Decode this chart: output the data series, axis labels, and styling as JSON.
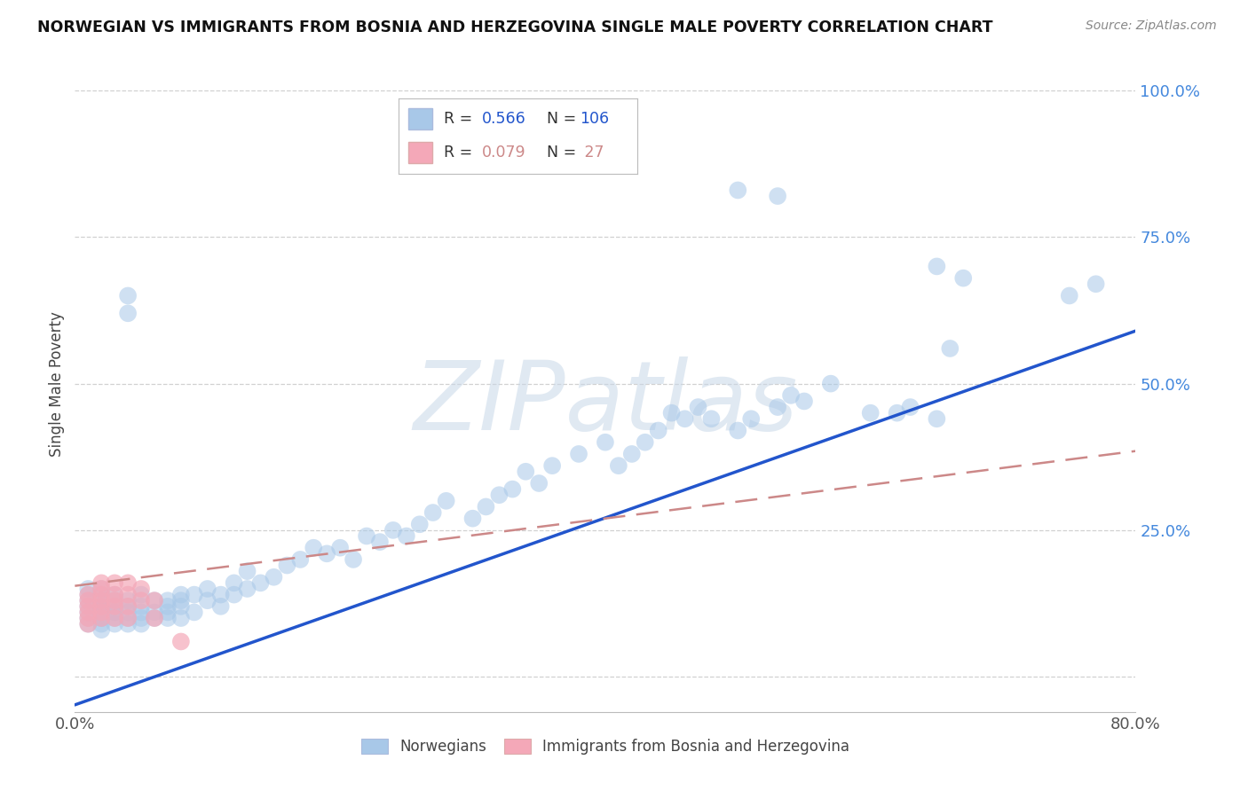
{
  "title": "NORWEGIAN VS IMMIGRANTS FROM BOSNIA AND HERZEGOVINA SINGLE MALE POVERTY CORRELATION CHART",
  "source": "Source: ZipAtlas.com",
  "ylabel": "Single Male Poverty",
  "xlim": [
    0.0,
    0.8
  ],
  "ylim": [
    -0.06,
    1.06
  ],
  "blue_color": "#a8c8e8",
  "pink_color": "#f4a8b8",
  "blue_line_color": "#2255cc",
  "pink_line_color": "#cc8888",
  "blue_R": 0.566,
  "blue_N": 106,
  "pink_R": 0.079,
  "pink_N": 27,
  "legend_blue_label": "Norwegians",
  "legend_pink_label": "Immigrants from Bosnia and Herzegovina",
  "watermark": "ZIPatlas",
  "blue_line_x0": 0.0,
  "blue_line_y0": -0.048,
  "blue_line_x1": 0.8,
  "blue_line_y1": 0.59,
  "pink_line_x0": 0.0,
  "pink_line_y0": 0.155,
  "pink_line_x1": 0.8,
  "pink_line_y1": 0.385,
  "blue_x": [
    0.01,
    0.01,
    0.01,
    0.01,
    0.01,
    0.01,
    0.01,
    0.02,
    0.02,
    0.02,
    0.02,
    0.02,
    0.02,
    0.02,
    0.02,
    0.02,
    0.02,
    0.03,
    0.03,
    0.03,
    0.03,
    0.03,
    0.03,
    0.03,
    0.04,
    0.04,
    0.04,
    0.04,
    0.04,
    0.05,
    0.05,
    0.05,
    0.05,
    0.05,
    0.06,
    0.06,
    0.06,
    0.07,
    0.07,
    0.07,
    0.07,
    0.08,
    0.08,
    0.08,
    0.08,
    0.09,
    0.09,
    0.1,
    0.1,
    0.11,
    0.11,
    0.12,
    0.12,
    0.13,
    0.13,
    0.14,
    0.15,
    0.16,
    0.17,
    0.18,
    0.19,
    0.2,
    0.21,
    0.22,
    0.23,
    0.24,
    0.25,
    0.26,
    0.27,
    0.28,
    0.3,
    0.31,
    0.32,
    0.33,
    0.34,
    0.35,
    0.36,
    0.38,
    0.4,
    0.41,
    0.42,
    0.43,
    0.44,
    0.45,
    0.46,
    0.47,
    0.48,
    0.5,
    0.51,
    0.53,
    0.54,
    0.55,
    0.57,
    0.6,
    0.62,
    0.63,
    0.65,
    0.66,
    0.75,
    0.77,
    0.04,
    0.04,
    0.5,
    0.53,
    0.65,
    0.67
  ],
  "blue_y": [
    0.12,
    0.1,
    0.13,
    0.15,
    0.09,
    0.11,
    0.14,
    0.1,
    0.12,
    0.14,
    0.11,
    0.13,
    0.09,
    0.15,
    0.1,
    0.12,
    0.08,
    0.11,
    0.13,
    0.1,
    0.12,
    0.09,
    0.14,
    0.11,
    0.1,
    0.12,
    0.09,
    0.13,
    0.11,
    0.1,
    0.12,
    0.14,
    0.09,
    0.11,
    0.11,
    0.13,
    0.1,
    0.12,
    0.1,
    0.13,
    0.11,
    0.14,
    0.12,
    0.1,
    0.13,
    0.11,
    0.14,
    0.15,
    0.13,
    0.14,
    0.12,
    0.16,
    0.14,
    0.15,
    0.18,
    0.16,
    0.17,
    0.19,
    0.2,
    0.22,
    0.21,
    0.22,
    0.2,
    0.24,
    0.23,
    0.25,
    0.24,
    0.26,
    0.28,
    0.3,
    0.27,
    0.29,
    0.31,
    0.32,
    0.35,
    0.33,
    0.36,
    0.38,
    0.4,
    0.36,
    0.38,
    0.4,
    0.42,
    0.45,
    0.44,
    0.46,
    0.44,
    0.42,
    0.44,
    0.46,
    0.48,
    0.47,
    0.5,
    0.45,
    0.45,
    0.46,
    0.44,
    0.56,
    0.65,
    0.67,
    0.62,
    0.65,
    0.83,
    0.82,
    0.7,
    0.68
  ],
  "pink_x": [
    0.01,
    0.01,
    0.01,
    0.01,
    0.01,
    0.01,
    0.02,
    0.02,
    0.02,
    0.02,
    0.02,
    0.02,
    0.02,
    0.03,
    0.03,
    0.03,
    0.03,
    0.03,
    0.04,
    0.04,
    0.04,
    0.04,
    0.05,
    0.05,
    0.06,
    0.06,
    0.08
  ],
  "pink_y": [
    0.12,
    0.13,
    0.14,
    0.1,
    0.09,
    0.11,
    0.12,
    0.14,
    0.1,
    0.13,
    0.15,
    0.11,
    0.16,
    0.12,
    0.14,
    0.1,
    0.13,
    0.16,
    0.14,
    0.16,
    0.12,
    0.1,
    0.13,
    0.15,
    0.13,
    0.1,
    0.06
  ]
}
